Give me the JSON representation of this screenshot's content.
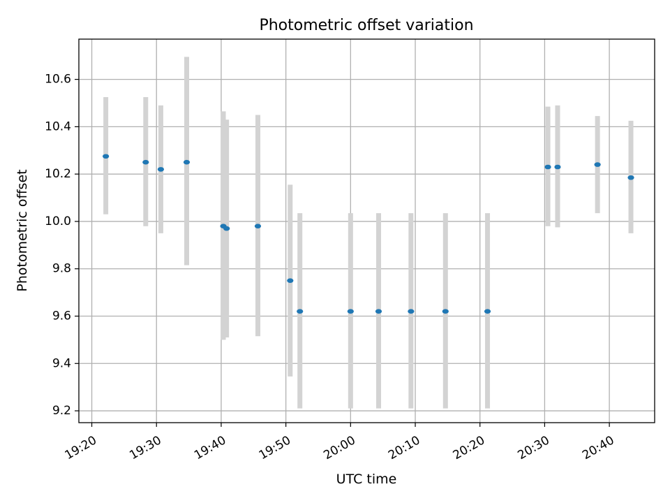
{
  "chart_data": {
    "type": "scatter",
    "title": "Photometric offset variation",
    "xlabel": "UTC time",
    "ylabel": "Photometric offset",
    "xlim": [
      "19:18:00",
      "20:47:00"
    ],
    "ylim": [
      9.15,
      10.77
    ],
    "x_ticks": [
      "19:20",
      "19:30",
      "19:40",
      "19:50",
      "20:00",
      "20:10",
      "20:20",
      "20:30",
      "20:40"
    ],
    "y_ticks": [
      "9.2",
      "9.4",
      "9.6",
      "9.8",
      "10.0",
      "10.2",
      "10.4",
      "10.6"
    ],
    "grid": true,
    "point_color": "#1f77b4",
    "errorbar_color": "#d3d3d3",
    "series": [
      {
        "x": [
          "19:22:10",
          "19:28:20",
          "19:30:40",
          "19:34:40",
          "19:40:20",
          "19:40:50",
          "19:45:40",
          "19:50:40",
          "19:52:10",
          "20:00:00",
          "20:04:20",
          "20:09:20",
          "20:14:40",
          "20:21:10",
          "20:30:30",
          "20:32:00",
          "20:38:10",
          "20:43:20"
        ],
        "y": [
          10.275,
          10.25,
          10.22,
          10.25,
          9.98,
          9.97,
          9.98,
          9.75,
          9.62,
          9.62,
          9.62,
          9.62,
          9.62,
          9.62,
          10.23,
          10.23,
          10.24,
          10.185
        ],
        "yerr_low": [
          10.03,
          9.98,
          9.95,
          9.815,
          9.5,
          9.51,
          9.515,
          9.345,
          9.21,
          9.21,
          9.21,
          9.21,
          9.21,
          9.21,
          9.98,
          9.975,
          10.035,
          9.95
        ],
        "yerr_high": [
          10.525,
          10.525,
          10.49,
          10.695,
          10.465,
          10.43,
          10.45,
          10.155,
          10.035,
          10.035,
          10.035,
          10.035,
          10.035,
          10.035,
          10.485,
          10.49,
          10.445,
          10.425
        ]
      }
    ]
  }
}
